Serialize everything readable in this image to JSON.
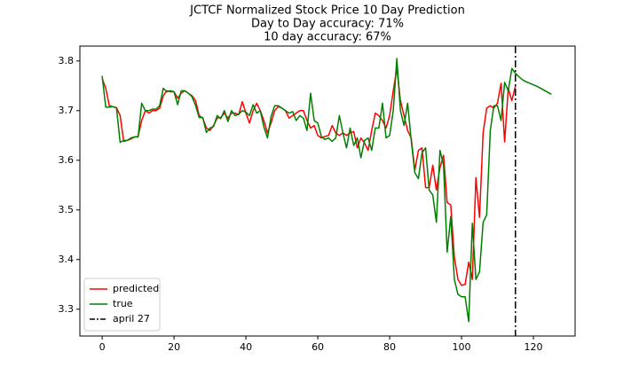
{
  "chart_data": {
    "type": "line",
    "title": "JCTCF Normalized Stock Price 10 Day Prediction",
    "subtitle": [
      "Day to Day accuracy: 71%",
      "10 day accuracy: 67%"
    ],
    "x": [
      0,
      1,
      2,
      3,
      4,
      5,
      6,
      7,
      8,
      9,
      10,
      11,
      12,
      13,
      14,
      15,
      16,
      17,
      18,
      19,
      20,
      21,
      22,
      23,
      24,
      25,
      26,
      27,
      28,
      29,
      30,
      31,
      32,
      33,
      34,
      35,
      36,
      37,
      38,
      39,
      40,
      41,
      42,
      43,
      44,
      45,
      46,
      47,
      48,
      49,
      50,
      51,
      52,
      53,
      54,
      55,
      56,
      57,
      58,
      59,
      60,
      61,
      62,
      63,
      64,
      65,
      66,
      67,
      68,
      69,
      70,
      71,
      72,
      73,
      74,
      75,
      76,
      77,
      78,
      79,
      80,
      81,
      82,
      83,
      84,
      85,
      86,
      87,
      88,
      89,
      90,
      91,
      92,
      93,
      94,
      95,
      96,
      97,
      98,
      99,
      100,
      101,
      102,
      103,
      104,
      105,
      106,
      107,
      108,
      109,
      110,
      111,
      112,
      113,
      114,
      115,
      116,
      117,
      118,
      119,
      120,
      121,
      122,
      123,
      124,
      125
    ],
    "series": [
      {
        "name": "predicted",
        "color": "#ff0000",
        "values": [
          3.765,
          3.745,
          3.71,
          3.708,
          3.706,
          3.69,
          3.638,
          3.64,
          3.643,
          3.647,
          3.648,
          3.68,
          3.7,
          3.695,
          3.7,
          3.7,
          3.705,
          3.73,
          3.74,
          3.738,
          3.738,
          3.725,
          3.735,
          3.74,
          3.735,
          3.73,
          3.72,
          3.69,
          3.685,
          3.665,
          3.66,
          3.67,
          3.685,
          3.686,
          3.695,
          3.685,
          3.695,
          3.695,
          3.692,
          3.718,
          3.695,
          3.675,
          3.7,
          3.715,
          3.7,
          3.68,
          3.655,
          3.675,
          3.7,
          3.708,
          3.705,
          3.7,
          3.685,
          3.69,
          3.695,
          3.7,
          3.7,
          3.68,
          3.665,
          3.67,
          3.65,
          3.645,
          3.648,
          3.65,
          3.67,
          3.655,
          3.65,
          3.655,
          3.65,
          3.655,
          3.658,
          3.625,
          3.645,
          3.635,
          3.62,
          3.66,
          3.695,
          3.69,
          3.68,
          3.665,
          3.69,
          3.74,
          3.785,
          3.72,
          3.69,
          3.66,
          3.645,
          3.58,
          3.62,
          3.625,
          3.545,
          3.545,
          3.59,
          3.54,
          3.585,
          3.61,
          3.515,
          3.51,
          3.405,
          3.36,
          3.348,
          3.35,
          3.395,
          3.36,
          3.565,
          3.485,
          3.655,
          3.705,
          3.71,
          3.705,
          3.715,
          3.755,
          3.637,
          3.745,
          3.72,
          3.75,
          null,
          null,
          null,
          null,
          null,
          null,
          null,
          null,
          null,
          null
        ]
      },
      {
        "name": "true",
        "color": "#008000",
        "values": [
          3.77,
          3.707,
          3.707,
          3.708,
          3.705,
          3.636,
          3.64,
          3.64,
          3.645,
          3.647,
          3.647,
          3.715,
          3.7,
          3.7,
          3.703,
          3.703,
          3.71,
          3.745,
          3.738,
          3.74,
          3.738,
          3.712,
          3.74,
          3.74,
          3.735,
          3.728,
          3.71,
          3.686,
          3.686,
          3.656,
          3.665,
          3.668,
          3.69,
          3.684,
          3.7,
          3.678,
          3.7,
          3.69,
          3.693,
          3.7,
          3.697,
          3.69,
          3.712,
          3.695,
          3.7,
          3.667,
          3.645,
          3.688,
          3.71,
          3.71,
          3.705,
          3.7,
          3.695,
          3.698,
          3.68,
          3.69,
          3.685,
          3.66,
          3.735,
          3.68,
          3.675,
          3.648,
          3.642,
          3.645,
          3.638,
          3.645,
          3.69,
          3.655,
          3.625,
          3.665,
          3.63,
          3.645,
          3.605,
          3.64,
          3.645,
          3.62,
          3.665,
          3.665,
          3.715,
          3.645,
          3.65,
          3.7,
          3.805,
          3.7,
          3.67,
          3.715,
          3.64,
          3.575,
          3.563,
          3.615,
          3.625,
          3.54,
          3.53,
          3.475,
          3.62,
          3.59,
          3.415,
          3.487,
          3.36,
          3.33,
          3.325,
          3.325,
          3.275,
          3.473,
          3.36,
          3.375,
          3.475,
          3.49,
          3.66,
          3.71,
          3.71,
          3.68,
          3.757,
          3.74,
          3.785,
          3.775,
          3.768,
          3.762,
          3.758,
          3.755,
          3.752,
          3.749,
          3.745,
          3.741,
          3.737,
          3.733
        ]
      }
    ],
    "vline": {
      "x": 115,
      "name": "april 27",
      "color": "#000000"
    },
    "xlim": [
      -6.2,
      131.6
    ],
    "ylim": [
      3.246,
      3.83
    ],
    "xticks": [
      0,
      20,
      40,
      60,
      80,
      100,
      120
    ],
    "yticks": [
      3.3,
      3.4,
      3.5,
      3.6,
      3.7,
      3.8
    ],
    "legend": "lower left"
  }
}
